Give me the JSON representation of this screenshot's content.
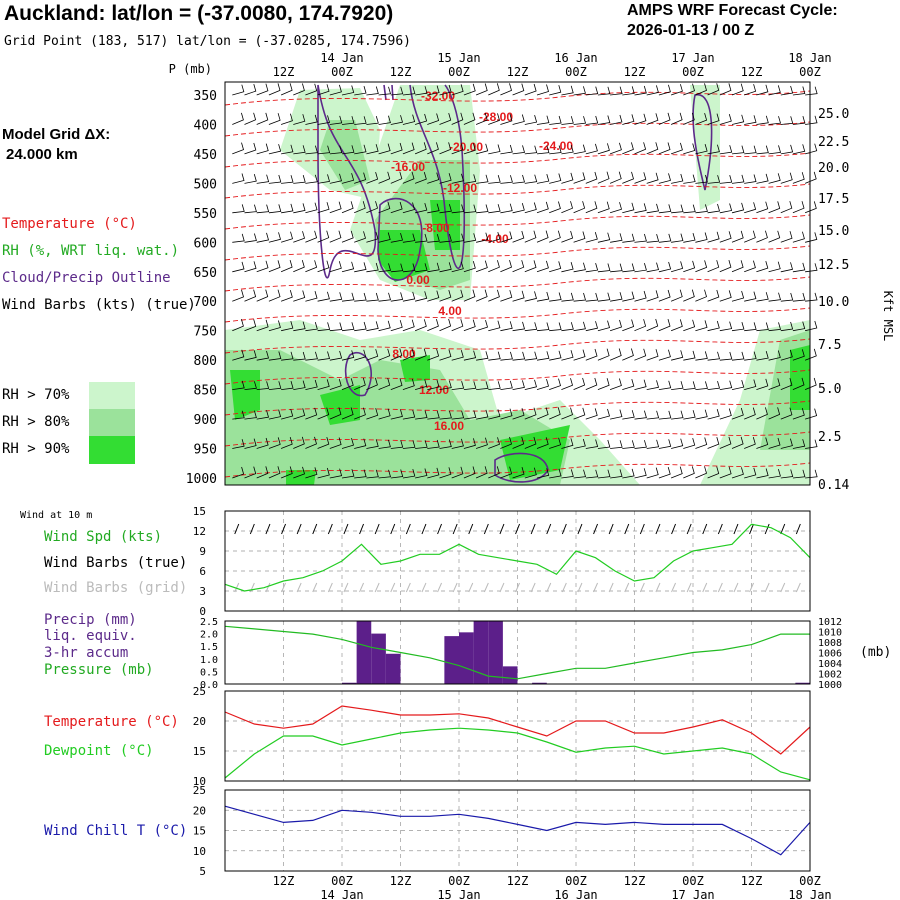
{
  "header": {
    "title": "Auckland:  lat/lon = (-37.0080, 174.7920)",
    "grid_point": "Grid Point (183, 517) lat/lon = (-37.0285, 174.7596)",
    "cycle_line1": "AMPS WRF Forecast Cycle:",
    "cycle_line2": "2026-01-13 / 00  Z",
    "model_grid_label": "Model Grid ΔX:",
    "model_grid_value": " 24.000 km"
  },
  "legend": {
    "temperature": "Temperature (°C)",
    "rh": "RH (%, WRT liq. wat.)",
    "cloud": "Cloud/Precip Outline",
    "wind_barbs": "Wind Barbs (kts) (true)",
    "rh70": "RH > 70%",
    "rh80": "RH > 80%",
    "rh90": "RH > 90%",
    "wind10m": "Wind at 10 m",
    "wind_spd": "Wind Spd (kts)",
    "barbs_true": "Wind Barbs (true)",
    "barbs_grid": "Wind Barbs (grid)",
    "precip1": "Precip (mm)",
    "precip2": "liq. equiv.",
    "precip3": "3-hr accum",
    "pressure": "Pressure (mb)",
    "temp": "Temperature (°C)",
    "dewpoint": "Dewpoint (°C)",
    "windchill": "Wind Chill T (°C)"
  },
  "colors": {
    "temperature": "#e41a1c",
    "rh_text": "#22aa22",
    "cloud": "#5c2a8a",
    "wind": "#000000",
    "grid_barbs": "#bbbbbb",
    "rh70": "#ccf5cc",
    "rh80": "#9be29b",
    "rh90": "#33dd33",
    "pressure": "#22bb22",
    "dewpoint": "#22cc22",
    "windchill": "#1a1aaa",
    "precip_bar": "#5c1f8a"
  },
  "chart_data": {
    "type": "line",
    "time_axis": {
      "hours": [
        12,
        24,
        36,
        48,
        60,
        72,
        84,
        96,
        108,
        120
      ],
      "labels": [
        "12Z",
        "00Z",
        "12Z",
        "00Z",
        "12Z",
        "00Z",
        "12Z",
        "00Z",
        "12Z",
        "00Z"
      ],
      "date_labels": [
        "14 Jan",
        "15 Jan",
        "16 Jan",
        "17 Jan",
        "18 Jan"
      ],
      "range": [
        0,
        120
      ]
    },
    "cross_section": {
      "p_label": "P (mb)",
      "pressure_levels": [
        350,
        400,
        450,
        500,
        550,
        600,
        650,
        700,
        750,
        800,
        850,
        900,
        950,
        1000
      ],
      "height_unit": "Kft MSL",
      "height_ticks": [
        "25.0",
        "22.5",
        "20.0",
        "17.5",
        "15.0",
        "12.5",
        "10.0",
        "7.5",
        "5.0",
        "2.5",
        "0.14"
      ],
      "isotherm_labels": [
        "-32.00",
        "-28.00",
        "-20.00",
        "-24.00",
        "-16.00",
        "-12.00",
        "-8.00",
        "-4.00",
        "0.00",
        "4.00",
        "8.00",
        "12.00",
        "16.00"
      ]
    },
    "wind_speed": {
      "ylabel": "Wind Spd (kts)",
      "ylim": [
        0,
        15
      ],
      "yticks": [
        0,
        3,
        6,
        9,
        12,
        15
      ],
      "x": [
        0,
        4,
        8,
        12,
        16,
        20,
        24,
        28,
        32,
        36,
        40,
        44,
        48,
        52,
        56,
        60,
        64,
        68,
        72,
        76,
        80,
        84,
        88,
        92,
        96,
        100,
        104,
        108,
        112,
        116,
        120
      ],
      "values": [
        4,
        3,
        3.5,
        4.5,
        5,
        6,
        7.5,
        10,
        7,
        7.5,
        8.5,
        8.5,
        10,
        8.5,
        8,
        7.5,
        7,
        5.5,
        9,
        8,
        6,
        4.5,
        5,
        7.5,
        9,
        9.5,
        10,
        13,
        12.5,
        11,
        8
      ]
    },
    "precip_pressure": {
      "precip_ylabel": "Precip (mm)",
      "precip_ylim": [
        0,
        2.5
      ],
      "precip_yticks": [
        "0.0",
        "0.5",
        "1.0",
        "1.5",
        "2.0",
        "2.5"
      ],
      "precip_bars": [
        {
          "start": 24,
          "end": 27,
          "value": 0.05
        },
        {
          "start": 27,
          "end": 30,
          "value": 2.5
        },
        {
          "start": 30,
          "end": 33,
          "value": 2.0
        },
        {
          "start": 33,
          "end": 36,
          "value": 1.2
        },
        {
          "start": 45,
          "end": 48,
          "value": 1.9
        },
        {
          "start": 48,
          "end": 51,
          "value": 2.05
        },
        {
          "start": 51,
          "end": 54,
          "value": 2.5
        },
        {
          "start": 54,
          "end": 57,
          "value": 2.5
        },
        {
          "start": 57,
          "end": 60,
          "value": 0.7
        },
        {
          "start": 63,
          "end": 66,
          "value": 0.05
        },
        {
          "start": 117,
          "end": 120,
          "value": 0.05
        }
      ],
      "pressure_ylabel": "Pressure (mb)",
      "pressure_unit": "(mb)",
      "pressure_ylim": [
        1000,
        1012
      ],
      "pressure_yticks": [
        1000,
        1002,
        1004,
        1006,
        1008,
        1010,
        1012
      ],
      "x": [
        0,
        6,
        12,
        18,
        24,
        30,
        36,
        42,
        48,
        54,
        60,
        66,
        72,
        78,
        84,
        90,
        96,
        102,
        108,
        114,
        120
      ],
      "pressure": [
        1011,
        1010.5,
        1010,
        1009.5,
        1008.5,
        1007,
        1006,
        1005,
        1003.5,
        1001.5,
        1001,
        1002,
        1003,
        1003,
        1004,
        1005,
        1006,
        1006.5,
        1007.5,
        1009.5,
        1009.5
      ]
    },
    "temp_dewpoint": {
      "ylim": [
        10,
        25
      ],
      "yticks": [
        10,
        15,
        20,
        25
      ],
      "x": [
        0,
        6,
        12,
        18,
        24,
        30,
        36,
        42,
        48,
        54,
        60,
        66,
        72,
        78,
        84,
        90,
        96,
        102,
        108,
        114,
        120
      ],
      "temperature": [
        21.5,
        19.5,
        18.8,
        19.5,
        22.5,
        21.8,
        21,
        21,
        21.2,
        20.5,
        19,
        17.5,
        20,
        20,
        18,
        18,
        19,
        20.2,
        18,
        14.5,
        19
      ],
      "dewpoint": [
        10.5,
        14.5,
        17.5,
        17.5,
        16,
        17,
        18,
        18.5,
        18.8,
        18.5,
        18,
        16.5,
        14.8,
        15.5,
        15.8,
        14.5,
        15,
        15.5,
        14.5,
        11.5,
        10.2
      ]
    },
    "wind_chill": {
      "ylim": [
        5,
        25
      ],
      "yticks": [
        5,
        10,
        15,
        20,
        25
      ],
      "x": [
        0,
        6,
        12,
        18,
        24,
        30,
        36,
        42,
        48,
        54,
        60,
        66,
        72,
        78,
        84,
        90,
        96,
        102,
        108,
        114,
        120
      ],
      "values": [
        21,
        19,
        17,
        17.5,
        20,
        19.5,
        18.5,
        18.5,
        19,
        18,
        16.5,
        15,
        17,
        16.5,
        17,
        16.5,
        16.5,
        16.5,
        13,
        9,
        17
      ]
    }
  }
}
